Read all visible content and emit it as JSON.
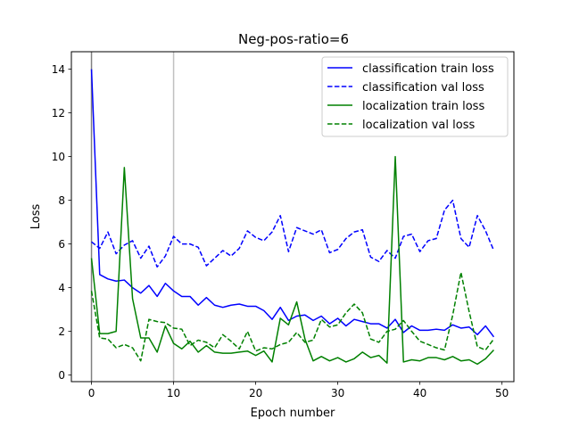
{
  "chart_data": {
    "type": "line",
    "title": "Neg-pos-ratio=6",
    "xlabel": "Epoch number",
    "ylabel": "Loss",
    "xlim": [
      -2.45,
      51.45
    ],
    "ylim": [
      -0.3,
      14.8
    ],
    "xticks": [
      0,
      10,
      20,
      30,
      40,
      50
    ],
    "yticks": [
      0,
      2,
      4,
      6,
      8,
      10,
      12,
      14
    ],
    "xtick_labels": [
      "0",
      "10",
      "20",
      "30",
      "40",
      "50"
    ],
    "ytick_labels": [
      "0",
      "2",
      "4",
      "6",
      "8",
      "10",
      "12",
      "14"
    ],
    "vlines": [
      0,
      10
    ],
    "grid": false,
    "legend_position": "top-right",
    "x": [
      0,
      1,
      2,
      3,
      4,
      5,
      6,
      7,
      8,
      9,
      10,
      11,
      12,
      13,
      14,
      15,
      16,
      17,
      18,
      19,
      20,
      21,
      22,
      23,
      24,
      25,
      26,
      27,
      28,
      29,
      30,
      31,
      32,
      33,
      34,
      35,
      36,
      37,
      38,
      39,
      40,
      41,
      42,
      43,
      44,
      45,
      46,
      47,
      48,
      49
    ],
    "series": [
      {
        "name": "classification train loss",
        "color": "#0000ff",
        "dash": "solid",
        "values": [
          14.0,
          4.6,
          4.4,
          4.3,
          4.35,
          4.0,
          3.75,
          4.1,
          3.6,
          4.2,
          3.85,
          3.6,
          3.6,
          3.2,
          3.55,
          3.2,
          3.1,
          3.2,
          3.25,
          3.15,
          3.15,
          2.95,
          2.55,
          3.1,
          2.5,
          2.7,
          2.75,
          2.5,
          2.7,
          2.35,
          2.6,
          2.25,
          2.55,
          2.45,
          2.35,
          2.35,
          2.15,
          2.55,
          1.95,
          2.25,
          2.05,
          2.05,
          2.1,
          2.05,
          2.3,
          2.15,
          2.2,
          1.85,
          2.25,
          1.75
        ]
      },
      {
        "name": "classification val loss",
        "color": "#0000ff",
        "dash": "dashed",
        "values": [
          6.1,
          5.8,
          6.55,
          5.55,
          5.95,
          6.15,
          5.35,
          5.9,
          4.95,
          5.45,
          6.35,
          6.0,
          6.0,
          5.85,
          5.0,
          5.35,
          5.7,
          5.45,
          5.8,
          6.6,
          6.3,
          6.15,
          6.55,
          7.3,
          5.65,
          6.75,
          6.6,
          6.45,
          6.65,
          5.6,
          5.75,
          6.25,
          6.55,
          6.65,
          5.4,
          5.2,
          5.7,
          5.35,
          6.35,
          6.45,
          5.65,
          6.15,
          6.25,
          7.55,
          8.0,
          6.25,
          5.85,
          7.3,
          6.6,
          5.7
        ]
      },
      {
        "name": "localization train loss",
        "color": "#008000",
        "dash": "solid",
        "values": [
          5.35,
          1.9,
          1.9,
          2.0,
          9.5,
          3.5,
          1.7,
          1.7,
          1.05,
          2.25,
          1.45,
          1.2,
          1.55,
          1.05,
          1.35,
          1.05,
          1.0,
          1.0,
          1.05,
          1.1,
          0.9,
          1.1,
          0.6,
          2.6,
          2.3,
          3.35,
          1.65,
          0.65,
          0.85,
          0.65,
          0.8,
          0.6,
          0.75,
          1.05,
          0.8,
          0.9,
          0.55,
          10.0,
          0.6,
          0.7,
          0.65,
          0.8,
          0.8,
          0.7,
          0.85,
          0.65,
          0.7,
          0.5,
          0.75,
          1.15
        ]
      },
      {
        "name": "localization val loss",
        "color": "#008000",
        "dash": "dashed",
        "values": [
          3.85,
          1.7,
          1.65,
          1.25,
          1.4,
          1.25,
          0.65,
          2.55,
          2.45,
          2.4,
          2.15,
          2.1,
          1.35,
          1.6,
          1.5,
          1.25,
          1.85,
          1.55,
          1.2,
          2.0,
          1.1,
          1.25,
          1.2,
          1.4,
          1.5,
          1.95,
          1.5,
          1.6,
          2.55,
          2.2,
          2.3,
          2.85,
          3.25,
          2.85,
          1.65,
          1.5,
          2.0,
          2.1,
          2.5,
          2.0,
          1.55,
          1.4,
          1.25,
          1.15,
          2.75,
          4.7,
          2.9,
          1.3,
          1.15,
          1.65
        ]
      }
    ]
  }
}
